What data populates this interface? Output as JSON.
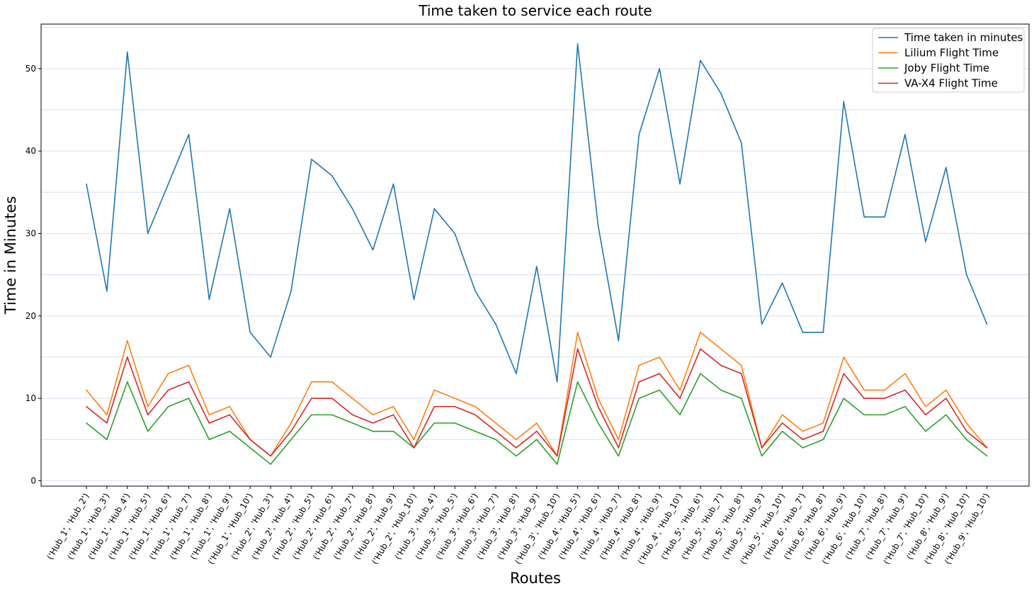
{
  "chart_data": {
    "type": "line",
    "title": "Time taken to service each route",
    "xlabel": "Routes",
    "ylabel": "Time in Minutes",
    "ylim": [
      -0.65,
      55.4
    ],
    "yticks": [
      0,
      10,
      20,
      30,
      40,
      50
    ],
    "grid": "horizontal minor lines every 5",
    "legend_position": "top-right",
    "categories": [
      "('Hub_1', 'Hub_2')",
      "('Hub_1', 'Hub_3')",
      "('Hub_1', 'Hub_4')",
      "('Hub_1', 'Hub_5')",
      "('Hub_1', 'Hub_6')",
      "('Hub_1', 'Hub_7')",
      "('Hub_1', 'Hub_8')",
      "('Hub_1', 'Hub_9')",
      "('Hub_1', 'Hub_10')",
      "('Hub_2', 'Hub_3')",
      "('Hub_2', 'Hub_4')",
      "('Hub_2', 'Hub_5')",
      "('Hub_2', 'Hub_6')",
      "('Hub_2', 'Hub_7')",
      "('Hub_2', 'Hub_8')",
      "('Hub_2', 'Hub_9')",
      "('Hub_2', 'Hub_10')",
      "('Hub_3', 'Hub_4')",
      "('Hub_3', 'Hub_5')",
      "('Hub_3', 'Hub_6')",
      "('Hub_3', 'Hub_7')",
      "('Hub_3', 'Hub_8')",
      "('Hub_3', 'Hub_9')",
      "('Hub_3', 'Hub_10')",
      "('Hub_4', 'Hub_5')",
      "('Hub_4', 'Hub_6')",
      "('Hub_4', 'Hub_7')",
      "('Hub_4', 'Hub_8')",
      "('Hub_4', 'Hub_9')",
      "('Hub_4', 'Hub_10')",
      "('Hub_5', 'Hub_6')",
      "('Hub_5', 'Hub_7')",
      "('Hub_5', 'Hub_8')",
      "('Hub_5', 'Hub_9')",
      "('Hub_5', 'Hub_10')",
      "('Hub_6', 'Hub_7')",
      "('Hub_6', 'Hub_8')",
      "('Hub_6', 'Hub_9')",
      "('Hub_6', 'Hub_10')",
      "('Hub_7', 'Hub_8')",
      "('Hub_7', 'Hub_9')",
      "('Hub_7', 'Hub_10')",
      "('Hub_8', 'Hub_9')",
      "('Hub_8', 'Hub_10')",
      "('Hub_9', 'Hub_10')"
    ],
    "series": [
      {
        "name": "Time taken in minutes",
        "color": "#1f77b4",
        "values": [
          36,
          23,
          52,
          30,
          36,
          42,
          22,
          33,
          18,
          15,
          23,
          39,
          37,
          33,
          28,
          36,
          22,
          33,
          30,
          23,
          19,
          13,
          26,
          12,
          53,
          31,
          17,
          42,
          50,
          36,
          51,
          47,
          41,
          19,
          24,
          18,
          18,
          46,
          32,
          32,
          42,
          29,
          38,
          25,
          19
        ]
      },
      {
        "name": "Lilium Flight Time",
        "color": "#ff7f0e",
        "values": [
          11,
          8,
          17,
          9,
          13,
          14,
          8,
          9,
          5,
          3,
          7,
          12,
          12,
          10,
          8,
          9,
          5,
          11,
          10,
          9,
          7,
          5,
          7,
          3,
          18,
          10,
          5,
          14,
          15,
          11,
          18,
          16,
          14,
          4,
          8,
          6,
          7,
          15,
          11,
          11,
          13,
          9,
          11,
          7,
          4
        ]
      },
      {
        "name": "Joby Flight Time",
        "color": "#2ca02c",
        "values": [
          7,
          5,
          12,
          6,
          9,
          10,
          5,
          6,
          4,
          2,
          5,
          8,
          8,
          7,
          6,
          6,
          4,
          7,
          7,
          6,
          5,
          3,
          5,
          2,
          12,
          7,
          3,
          10,
          11,
          8,
          13,
          11,
          10,
          3,
          6,
          4,
          5,
          10,
          8,
          8,
          9,
          6,
          8,
          5,
          3
        ]
      },
      {
        "name": "VA-X4 Flight Time",
        "color": "#d62728",
        "values": [
          9,
          7,
          15,
          8,
          11,
          12,
          7,
          8,
          5,
          3,
          6,
          10,
          10,
          8,
          7,
          8,
          4,
          9,
          9,
          8,
          6,
          4,
          6,
          3,
          16,
          9,
          4,
          12,
          13,
          10,
          16,
          14,
          13,
          4,
          7,
          5,
          6,
          13,
          10,
          10,
          11,
          8,
          10,
          6,
          4
        ]
      }
    ]
  }
}
